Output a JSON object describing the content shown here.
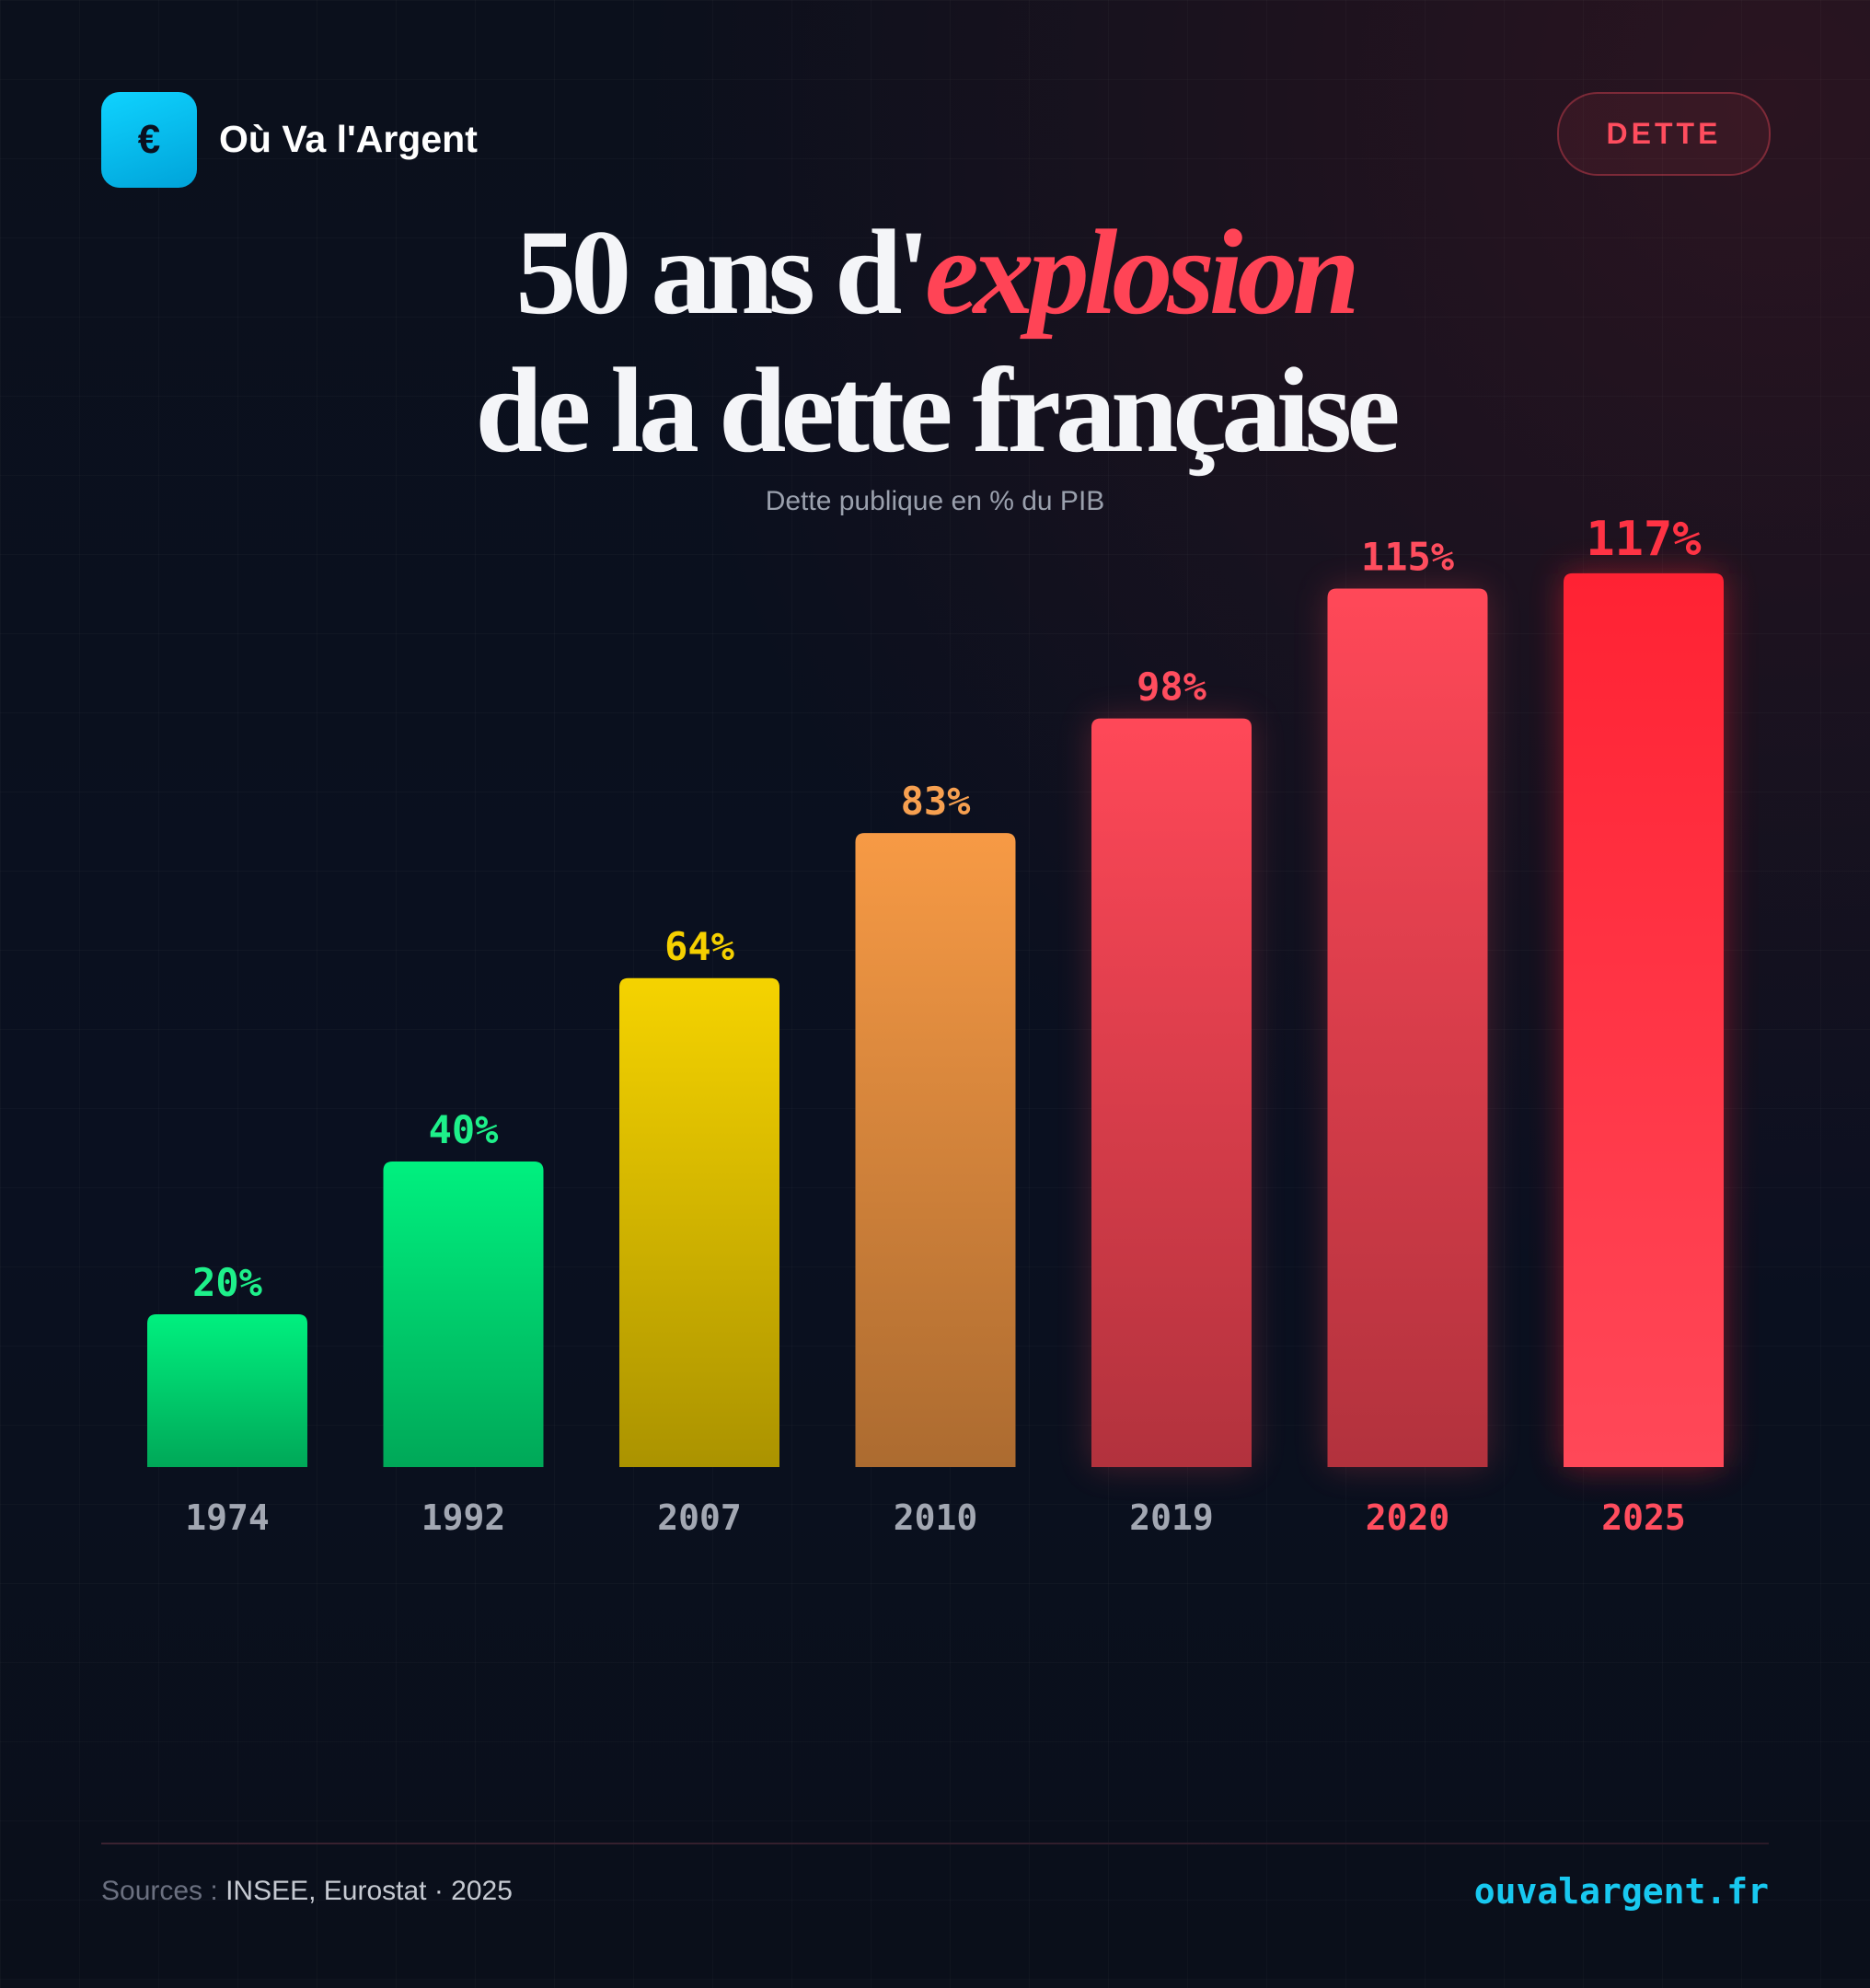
{
  "brand": {
    "name": "Où Va l'Argent",
    "logo_icon": "euro-icon",
    "logo_symbol": "€",
    "logo_color": "#0fd3ff"
  },
  "tag": "DETTE",
  "title": {
    "line1_prefix": "50 ans d'",
    "line1_accent": "explosion",
    "line2": "de la dette française"
  },
  "subtitle": "Dette publique en % du PIB",
  "chart_data": {
    "type": "bar",
    "categories": [
      "1974",
      "1992",
      "2007",
      "2010",
      "2019",
      "2020",
      "2025"
    ],
    "values": [
      20,
      40,
      64,
      83,
      98,
      115,
      117
    ],
    "labels": [
      "20%",
      "40%",
      "64%",
      "83%",
      "98%",
      "115%",
      "117%"
    ],
    "ylabel": "Dette publique en % du PIB",
    "ylim": [
      0,
      117
    ],
    "grid": false,
    "colors": [
      "#00f07f",
      "#00f07f",
      "#f5d300",
      "#f79a45",
      "#ff4858",
      "#ff4858",
      "#ff2233"
    ],
    "label_colors": [
      "#1ef08a",
      "#1ef08a",
      "#f5d000",
      "#f7a050",
      "#ff4d5e",
      "#ff4d5e",
      "#ff3344"
    ],
    "highlight_years": [
      "2020",
      "2025"
    ]
  },
  "footer": {
    "sources_label": "Sources :",
    "sources": "INSEE, Eurostat · 2025",
    "site": "ouvalargent.fr"
  }
}
